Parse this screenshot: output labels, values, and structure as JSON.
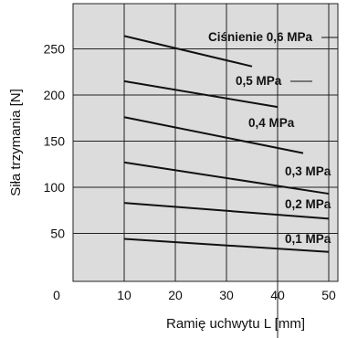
{
  "chart_data": {
    "type": "line",
    "xlabel": "Ramię uchwytu L [mm]",
    "ylabel": "Siła trzymania [N]",
    "xlim": [
      0,
      50
    ],
    "ylim": [
      0,
      275
    ],
    "x_ticks": [
      10,
      20,
      30,
      40,
      50
    ],
    "y_ticks": [
      50,
      100,
      150,
      200,
      250
    ],
    "origin_label": "0",
    "grid": true,
    "background": "#dcdcdc",
    "series": [
      {
        "name": "Ciśnienie 0,6 MPa",
        "x": [
          10,
          35
        ],
        "y": [
          264,
          231
        ]
      },
      {
        "name": "0,5 MPa",
        "x": [
          10,
          40
        ],
        "y": [
          215,
          187
        ]
      },
      {
        "name": "0,4 MPa",
        "x": [
          10,
          45
        ],
        "y": [
          176,
          137
        ]
      },
      {
        "name": "0,3 MPa",
        "x": [
          10,
          50
        ],
        "y": [
          127,
          93
        ]
      },
      {
        "name": "0,2 MPa",
        "x": [
          10,
          50
        ],
        "y": [
          83,
          66
        ]
      },
      {
        "name": "0,1 MPa",
        "x": [
          10,
          50
        ],
        "y": [
          44,
          30
        ]
      }
    ]
  }
}
